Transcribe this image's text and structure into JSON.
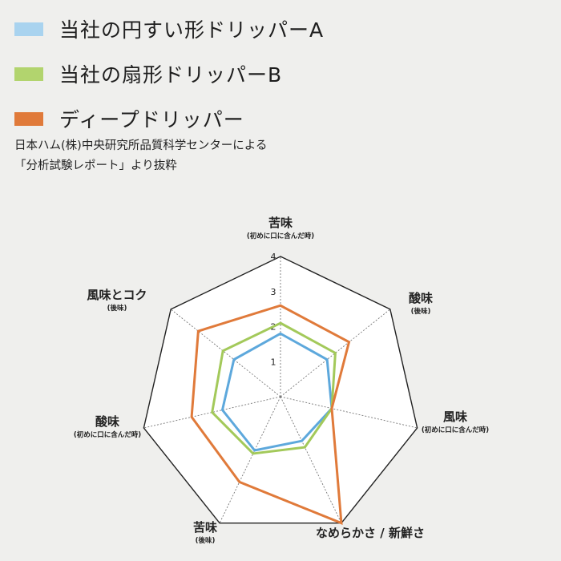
{
  "legend": [
    {
      "label": "当社の円すい形ドリッパーA",
      "color": "#a9d3ef"
    },
    {
      "label": "当社の扇形ドリッパーB",
      "color": "#b2d46e"
    },
    {
      "label": "ディープドリッパー",
      "color": "#e07a3a"
    }
  ],
  "source": {
    "line1": "日本ハム(株)中央研究所品質科学センターによる",
    "line2": "「分析試験レポート」より抜粋"
  },
  "chart_data": {
    "type": "radar",
    "axes": [
      {
        "label": "苦味",
        "sub": "(初めに口に含んだ時)"
      },
      {
        "label": "酸味",
        "sub": "(後味)"
      },
      {
        "label": "風味",
        "sub": "(初めに口に含んだ時)"
      },
      {
        "label": "なめらかさ / 新鮮さ",
        "sub": ""
      },
      {
        "label": "苦味",
        "sub": "(後味)"
      },
      {
        "label": "酸味",
        "sub": "(初めに口に含んだ時)"
      },
      {
        "label": "風味とコク",
        "sub": "(後味)"
      }
    ],
    "ticks": [
      "1",
      "2",
      "3",
      "4"
    ],
    "range": [
      0,
      4
    ],
    "series": [
      {
        "name": "当社の円すい形ドリッパーA",
        "color": "#a9d3ef",
        "stroke": "#5da8dc",
        "values": [
          1.8,
          1.7,
          1.5,
          1.4,
          1.7,
          1.7,
          1.7
        ]
      },
      {
        "name": "当社の扇形ドリッパーB",
        "color": "#b2d46e",
        "stroke": "#a3c95a",
        "values": [
          2.1,
          2.0,
          1.5,
          1.6,
          1.8,
          2.0,
          2.1
        ]
      },
      {
        "name": "ディープドリッパー",
        "color": "#e07a3a",
        "stroke": "#e07a3a",
        "values": [
          2.6,
          2.5,
          1.5,
          4.0,
          2.7,
          2.6,
          3.0
        ]
      }
    ]
  }
}
